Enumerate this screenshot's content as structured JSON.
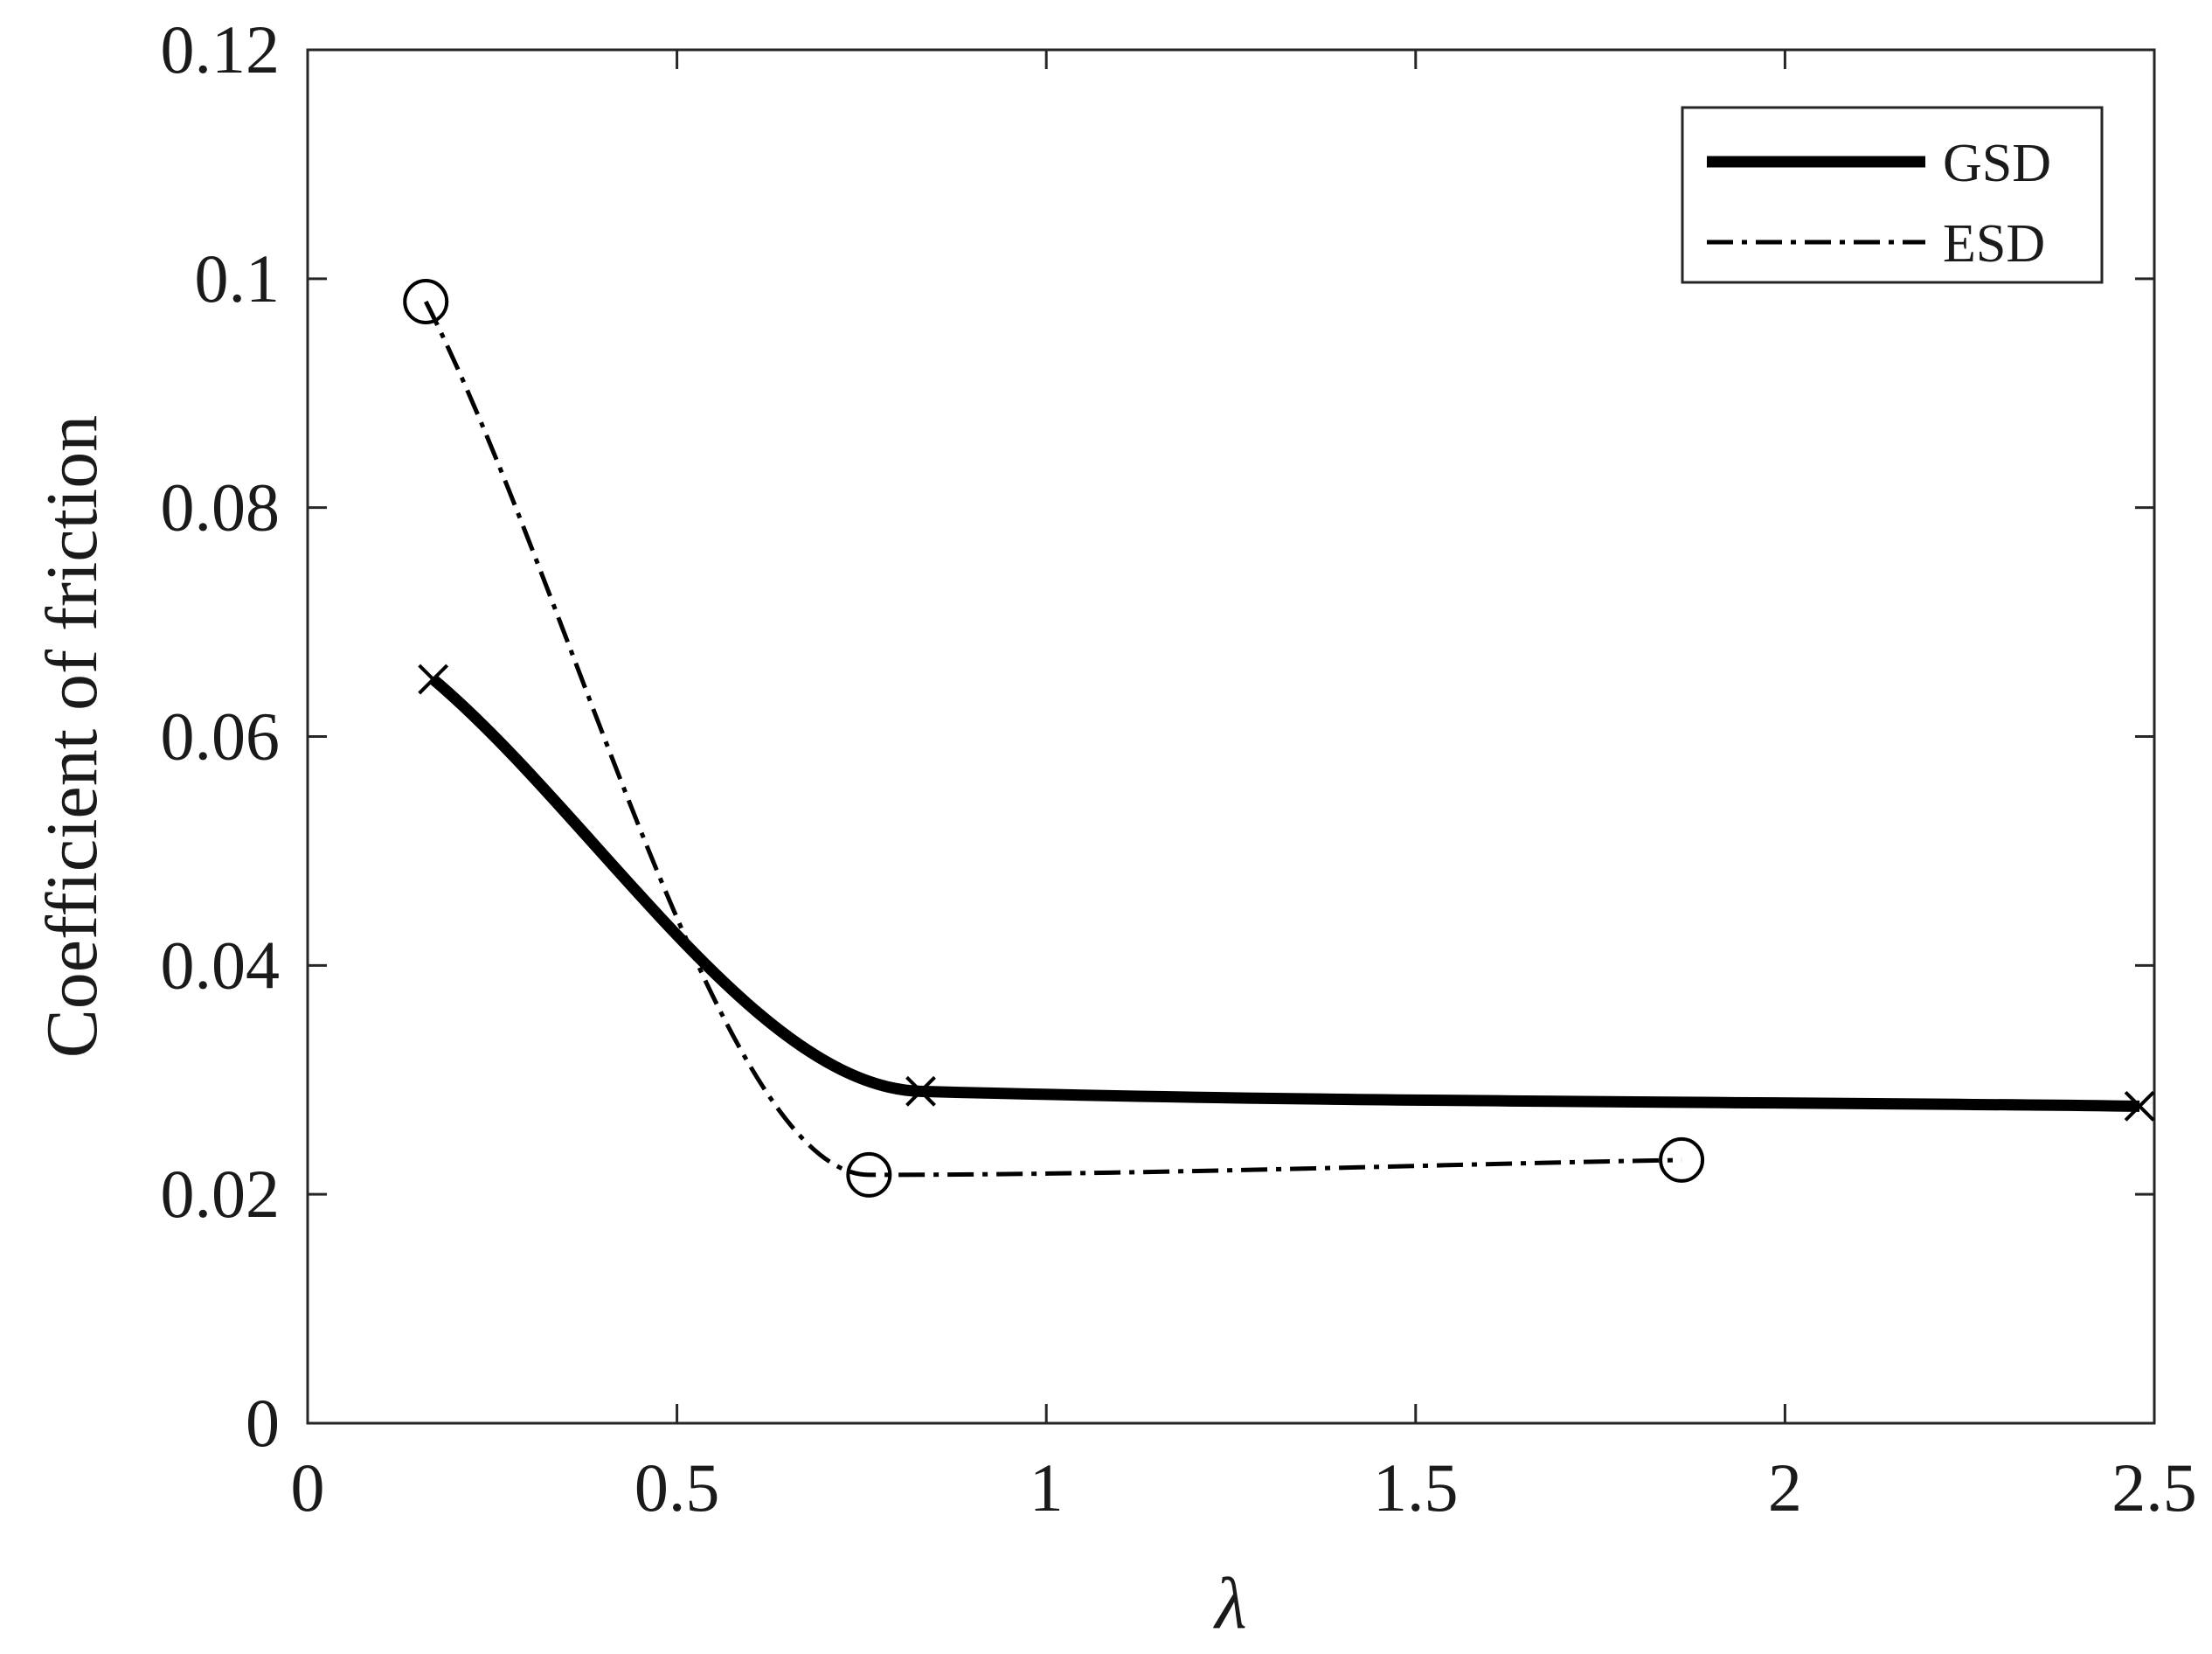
{
  "chart_data": {
    "type": "line",
    "title": "",
    "xlabel": "λ",
    "ylabel": "Coefficient of friction",
    "xlim": [
      0,
      2.5
    ],
    "ylim": [
      0,
      0.12
    ],
    "x_ticks": [
      0,
      0.5,
      1,
      1.5,
      2,
      2.5
    ],
    "x_tick_labels": [
      "0",
      "0.5",
      "1",
      "1.5",
      "2",
      "2.5"
    ],
    "y_ticks": [
      0,
      0.02,
      0.04,
      0.06,
      0.08,
      0.1,
      0.12
    ],
    "y_tick_labels": [
      "0",
      "0.02",
      "0.04",
      "0.06",
      "0.08",
      "0.1",
      "0.12"
    ],
    "grid": false,
    "legend_position": "top-right",
    "series": [
      {
        "name": "GSD",
        "line_style": "solid-thick",
        "marker": "x",
        "color": "#000000",
        "points": [
          {
            "x": 0.17,
            "y": 0.065
          },
          {
            "x": 0.83,
            "y": 0.029
          },
          {
            "x": 2.48,
            "y": 0.0277
          }
        ]
      },
      {
        "name": "ESD",
        "line_style": "dash-dot",
        "marker": "circle",
        "color": "#000000",
        "points": [
          {
            "x": 0.16,
            "y": 0.098
          },
          {
            "x": 0.76,
            "y": 0.0217
          },
          {
            "x": 1.86,
            "y": 0.023
          }
        ]
      }
    ]
  }
}
